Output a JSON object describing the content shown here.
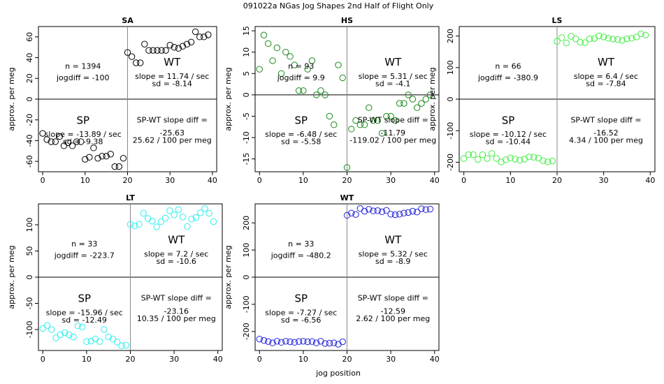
{
  "page_title": "091022a   NGas Jog Shapes 2nd Half of Flight Only",
  "x_axis_label": "jog position",
  "chart_data": [
    {
      "type": "scatter",
      "title": "SA",
      "color": "#000000",
      "xlim": [
        -1,
        41
      ],
      "ylim": [
        -70,
        70
      ],
      "x_ticks": [
        0,
        10,
        20,
        30,
        40
      ],
      "y_ticks": [
        -60,
        -40,
        -20,
        0,
        20,
        40,
        60
      ],
      "ylabel": "approx. per meg",
      "show_ylabel": true,
      "show_xlabel": false,
      "x": [
        0,
        1,
        2,
        3,
        4,
        5,
        6,
        7,
        8,
        9,
        10,
        11,
        12,
        13,
        14,
        15,
        16,
        17,
        18,
        19,
        20,
        21,
        22,
        23,
        24,
        25,
        26,
        27,
        28,
        29,
        30,
        31,
        32,
        33,
        34,
        35,
        36,
        37,
        38,
        39
      ],
      "values": [
        -33,
        -39,
        -41,
        -41,
        -36,
        -45,
        -42,
        -45,
        -41,
        -41,
        -58,
        -56,
        -47,
        -57,
        -55,
        -55,
        -53,
        -65,
        -65,
        -57,
        45,
        41,
        35,
        35,
        53,
        47,
        47,
        47,
        47,
        47,
        52,
        50,
        49,
        51,
        53,
        55,
        65,
        60,
        60,
        62
      ],
      "annotations": {
        "n": "n = 1394",
        "jogdiff": "jogdiff = -100",
        "sp_label": "SP",
        "sp_slope": "slope = -13.89 / sec",
        "sp_sd": "sd = -9.38",
        "wt_label": "WT",
        "wt_slope": "slope = 11.74 / sec",
        "wt_sd": "sd = -8.14",
        "diff_title": "SP-WT slope diff =",
        "diff_value": "-25.63",
        "diff_per": "25.62 / 100 per meg"
      }
    },
    {
      "type": "scatter",
      "title": "HS",
      "color": "#1a8a1a",
      "xlim": [
        -1,
        41
      ],
      "ylim": [
        -18,
        16
      ],
      "x_ticks": [
        0,
        10,
        20,
        30,
        40
      ],
      "y_ticks": [
        -15,
        -10,
        -5,
        0,
        5,
        10,
        15
      ],
      "ylabel": "approx. per meg",
      "show_ylabel": true,
      "show_xlabel": true,
      "x": [
        0,
        1,
        2,
        3,
        4,
        5,
        6,
        7,
        8,
        9,
        10,
        11,
        12,
        13,
        14,
        15,
        16,
        17,
        18,
        19,
        20,
        21,
        22,
        23,
        24,
        25,
        26,
        27,
        28,
        29,
        30,
        31,
        32,
        33,
        34,
        35,
        36,
        37,
        38,
        39
      ],
      "values": [
        6,
        14,
        12,
        8,
        11,
        5,
        10,
        9,
        7,
        1,
        1,
        6,
        8,
        0,
        1,
        0,
        -5,
        -7,
        7,
        4,
        -17,
        -8,
        -6,
        -7,
        -7,
        -3,
        -6,
        -6,
        -9,
        -5,
        -5,
        -6,
        -2,
        -2,
        0,
        -1,
        -3,
        -2,
        -1,
        0
      ],
      "annotations": {
        "n": "n = 93",
        "jogdiff": "jogdiff = 9.9",
        "sp_label": "SP",
        "sp_slope": "slope = -6.48 / sec",
        "sp_sd": "sd = -5.58",
        "wt_label": "WT",
        "wt_slope": "slope = 5.31 / sec",
        "wt_sd": "sd = -4.1",
        "diff_title": "SP-WT slope diff =",
        "diff_value": "-11.79",
        "diff_per": "-119.02 / 100 per meg"
      }
    },
    {
      "type": "scatter",
      "title": "LS",
      "color": "#44ee44",
      "xlim": [
        -1,
        41
      ],
      "ylim": [
        -230,
        230
      ],
      "x_ticks": [
        0,
        10,
        20,
        30,
        40
      ],
      "y_ticks": [
        -200,
        -100,
        0,
        100,
        200
      ],
      "ylabel": "approx. per meg",
      "show_ylabel": true,
      "show_xlabel": false,
      "x": [
        0,
        1,
        2,
        3,
        4,
        5,
        6,
        7,
        8,
        9,
        10,
        11,
        12,
        13,
        14,
        15,
        16,
        17,
        18,
        19,
        20,
        21,
        22,
        23,
        24,
        25,
        26,
        27,
        28,
        29,
        30,
        31,
        32,
        33,
        34,
        35,
        36,
        37,
        38,
        39
      ],
      "values": [
        -188,
        -176,
        -176,
        -191,
        -176,
        -188,
        -172,
        -188,
        -199,
        -192,
        -186,
        -190,
        -193,
        -190,
        -183,
        -184,
        -187,
        -195,
        -199,
        -196,
        183,
        195,
        178,
        199,
        191,
        180,
        179,
        191,
        192,
        200,
        197,
        193,
        190,
        189,
        186,
        191,
        193,
        197,
        207,
        203
      ],
      "annotations": {
        "n": "n = 66",
        "jogdiff": "jogdiff = -380.9",
        "sp_label": "SP",
        "sp_slope": "slope = -10.12 / sec",
        "sp_sd": "sd = -10.44",
        "wt_label": "WT",
        "wt_slope": "slope = 6.4 / sec",
        "wt_sd": "sd = -7.84",
        "diff_title": "SP-WT slope diff =",
        "diff_value": "-16.52",
        "diff_per": "4.34 / 100 per meg"
      }
    },
    {
      "type": "scatter",
      "title": "LT",
      "color": "#33eeee",
      "xlim": [
        -1,
        41
      ],
      "ylim": [
        -140,
        140
      ],
      "x_ticks": [
        0,
        10,
        20,
        30,
        40
      ],
      "y_ticks": [
        -100,
        -50,
        0,
        50,
        100
      ],
      "ylabel": "approx. per meg",
      "show_ylabel": true,
      "show_xlabel": false,
      "x": [
        0,
        1,
        2,
        3,
        4,
        5,
        6,
        7,
        8,
        9,
        10,
        11,
        12,
        13,
        14,
        15,
        16,
        17,
        18,
        19,
        20,
        21,
        22,
        23,
        24,
        25,
        26,
        27,
        28,
        29,
        30,
        31,
        32,
        33,
        34,
        35,
        36,
        37,
        38,
        39
      ],
      "values": [
        -98,
        -92,
        -100,
        -116,
        -110,
        -106,
        -110,
        -114,
        -93,
        -95,
        -123,
        -122,
        -118,
        -123,
        -100,
        -114,
        -118,
        -124,
        -131,
        -130,
        101,
        98,
        101,
        122,
        112,
        107,
        96,
        106,
        113,
        127,
        119,
        129,
        115,
        97,
        111,
        114,
        123,
        131,
        122,
        106
      ],
      "annotations": {
        "n": "n = 33",
        "jogdiff": "jogdiff = -223.7",
        "sp_label": "SP",
        "sp_slope": "slope = -15.96 / sec",
        "sp_sd": "sd = -12.49",
        "wt_label": "WT",
        "wt_slope": "slope = 7.2 / sec",
        "wt_sd": "sd = -10.6",
        "diff_title": "SP-WT slope diff =",
        "diff_value": "-23.16",
        "diff_per": "10.35 / 100 per meg"
      }
    },
    {
      "type": "scatter",
      "title": "WT",
      "color": "#2222dd",
      "xlim": [
        -1,
        41
      ],
      "ylim": [
        -270,
        270
      ],
      "x_ticks": [
        0,
        10,
        20,
        30,
        40
      ],
      "y_ticks": [
        -200,
        -100,
        0,
        100,
        200
      ],
      "ylabel": "approx. per meg",
      "show_ylabel": true,
      "show_xlabel": true,
      "x": [
        0,
        1,
        2,
        3,
        4,
        5,
        6,
        7,
        8,
        9,
        10,
        11,
        12,
        13,
        14,
        15,
        16,
        17,
        18,
        19,
        20,
        21,
        22,
        23,
        24,
        25,
        26,
        27,
        28,
        29,
        30,
        31,
        32,
        33,
        34,
        35,
        36,
        37,
        38,
        39
      ],
      "values": [
        -228,
        -233,
        -237,
        -242,
        -236,
        -240,
        -236,
        -238,
        -240,
        -237,
        -236,
        -238,
        -237,
        -242,
        -236,
        -244,
        -243,
        -242,
        -247,
        -238,
        228,
        236,
        231,
        253,
        243,
        250,
        244,
        245,
        241,
        246,
        232,
        230,
        232,
        236,
        238,
        243,
        240,
        252,
        249,
        251
      ],
      "annotations": {
        "n": "n = 33",
        "jogdiff": "jogdiff = -480.2",
        "sp_label": "SP",
        "sp_slope": "slope = -7.27 / sec",
        "sp_sd": "sd = -6.56",
        "wt_label": "WT",
        "wt_slope": "slope = 5.32 / sec",
        "wt_sd": "sd = -8.9",
        "diff_title": "SP-WT slope diff =",
        "diff_value": "-12.59",
        "diff_per": "2.62 / 100 per meg"
      }
    }
  ]
}
